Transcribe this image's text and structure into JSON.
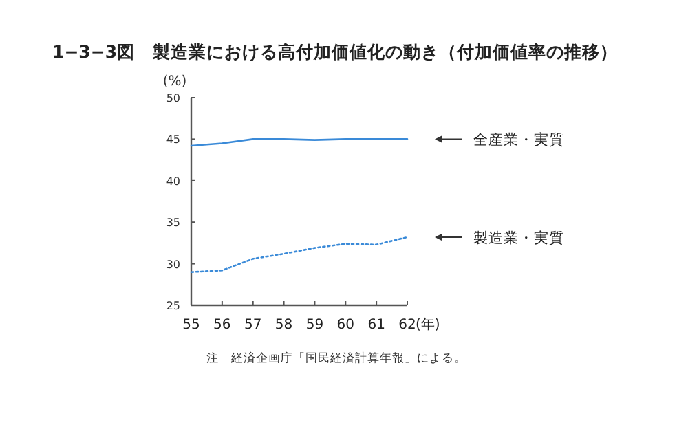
{
  "chart_data": {
    "type": "line",
    "title": "1−3−3図　製造業における高付加価値化の動き（付加価値率の推移）",
    "ylabel": "(%)",
    "xlabel": "(年)",
    "x": [
      55,
      56,
      57,
      58,
      59,
      60,
      61,
      62
    ],
    "series": [
      {
        "name": "全産業・実質",
        "color": "#3a8ad8",
        "line_style": "solid",
        "values": [
          44.2,
          44.5,
          45.0,
          45.0,
          44.9,
          45.0,
          45.0,
          45.0
        ]
      },
      {
        "name": "製造業・実質",
        "color": "#3a8ad8",
        "line_style": "dotted",
        "values": [
          29.0,
          29.2,
          30.6,
          31.2,
          31.9,
          32.4,
          32.3,
          33.2
        ]
      }
    ],
    "xlim": [
      55,
      62
    ],
    "ylim": [
      25,
      50
    ],
    "xticks": [
      55,
      56,
      57,
      58,
      59,
      60,
      61,
      62
    ],
    "yticks": [
      25,
      30,
      35,
      40,
      45,
      50
    ],
    "grid": false,
    "legend": false,
    "marker": "none",
    "annotations": [
      "注　経済企画庁「国民経済計算年報」による。"
    ]
  }
}
